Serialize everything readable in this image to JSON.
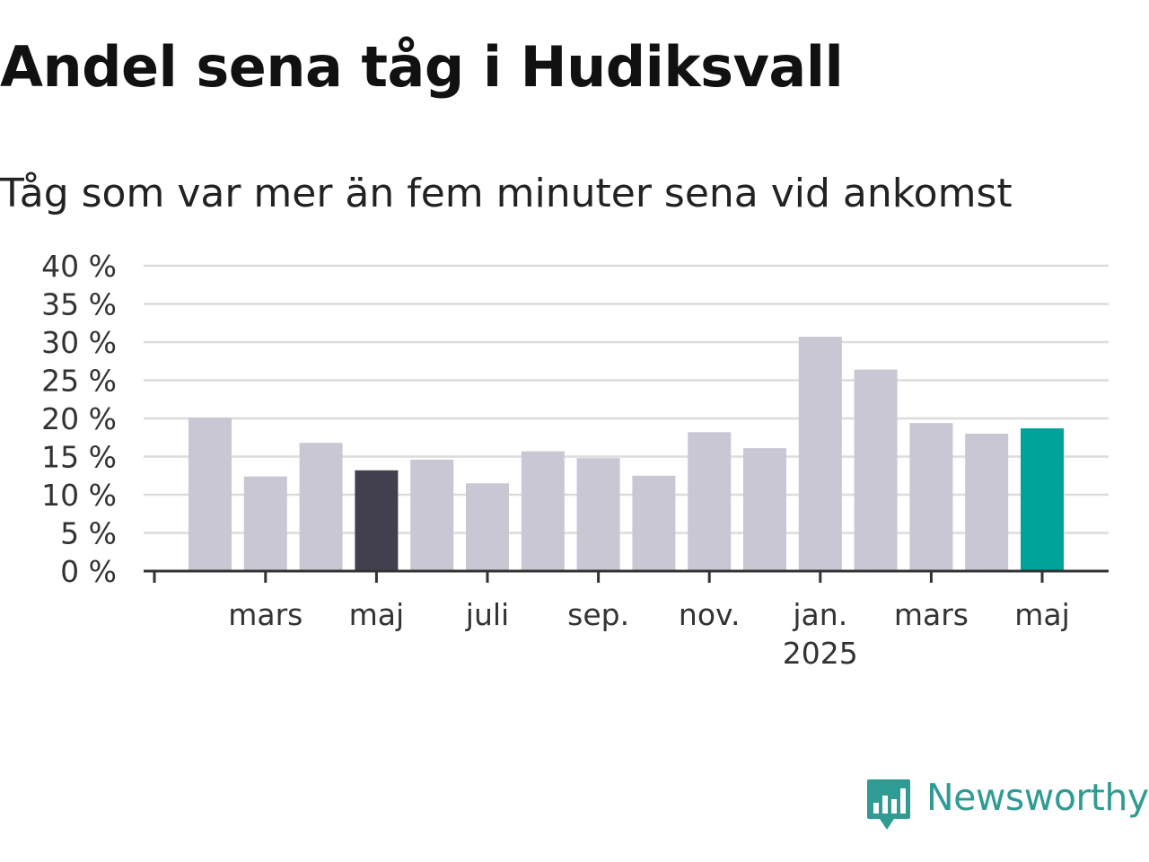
{
  "title": "Andel sena tåg i Hudiksvall",
  "subtitle": "Tåg som var mer än fem minuter sena vid ankomst",
  "brand": {
    "name": "Newsworthy",
    "icon": "newsworthy-logo-icon",
    "color": "#2f9b93"
  },
  "chart_data": {
    "type": "bar",
    "categories": [
      "2024-02",
      "2024-03",
      "2024-04",
      "2024-05",
      "2024-06",
      "2024-07",
      "2024-08",
      "2024-09",
      "2024-10",
      "2024-11",
      "2024-12",
      "2025-01",
      "2025-02",
      "2025-03",
      "2025-04",
      "2025-05"
    ],
    "values": [
      20.1,
      12.4,
      16.8,
      13.2,
      14.6,
      11.5,
      15.7,
      14.8,
      12.5,
      18.2,
      16.1,
      30.7,
      26.4,
      19.4,
      18.0,
      18.7
    ],
    "highlight": {
      "2024-05": "#42404e",
      "2025-05": "#00a39a"
    },
    "bar_color": "#c8c7d3",
    "ylim": [
      0,
      40
    ],
    "yticks": [
      {
        "value": 0,
        "label": "0 %"
      },
      {
        "value": 5,
        "label": "5 %"
      },
      {
        "value": 10,
        "label": "10 %"
      },
      {
        "value": 15,
        "label": "15 %"
      },
      {
        "value": 20,
        "label": "20 %"
      },
      {
        "value": 25,
        "label": "25 %"
      },
      {
        "value": 30,
        "label": "30 %"
      },
      {
        "value": 35,
        "label": "35 %"
      },
      {
        "value": 40,
        "label": "40 %"
      }
    ],
    "xticks": [
      {
        "category": "2024-03",
        "label": "mars"
      },
      {
        "category": "2024-05",
        "label": "maj"
      },
      {
        "category": "2024-07",
        "label": "juli"
      },
      {
        "category": "2024-09",
        "label": "sep."
      },
      {
        "category": "2024-11",
        "label": "nov."
      },
      {
        "category": "2025-01",
        "label": "jan.",
        "sublabel": "2025"
      },
      {
        "category": "2025-03",
        "label": "mars"
      },
      {
        "category": "2025-05",
        "label": "maj"
      }
    ],
    "grid": true,
    "xlabel": "",
    "ylabel": ""
  }
}
